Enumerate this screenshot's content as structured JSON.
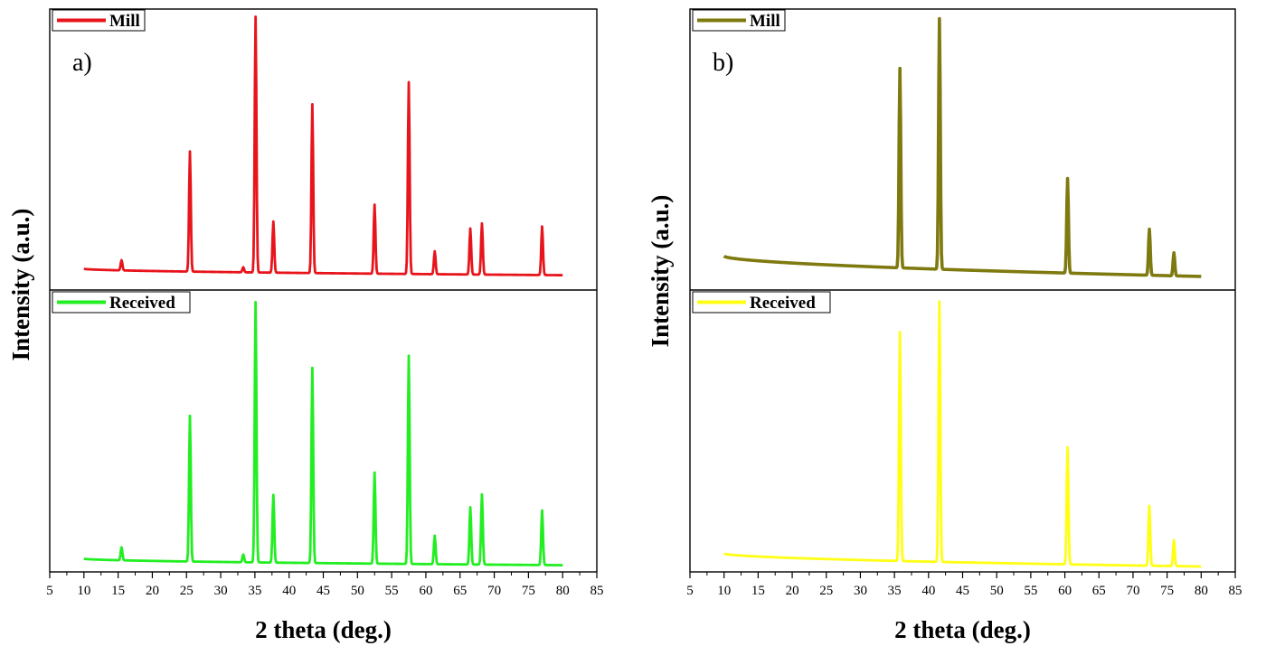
{
  "chart_data": [
    {
      "type": "line",
      "panel_label": "a)",
      "xlabel": "2 theta (deg.)",
      "ylabel": "Intensity (a.u.)",
      "xlim": [
        5,
        85
      ],
      "x_ticks": [
        5,
        10,
        15,
        20,
        25,
        30,
        35,
        40,
        45,
        50,
        55,
        60,
        65,
        70,
        75,
        80,
        85
      ],
      "y_ticks_shown": false,
      "grid": false,
      "layout": "two stacked panels sharing the x axis",
      "series": [
        {
          "name": "Mill",
          "color": "#e8141b",
          "panel": "top",
          "baseline_start": 0.03,
          "baseline_end": 0.005,
          "peaks": [
            {
              "x": 15.5,
              "height": 0.04
            },
            {
              "x": 25.5,
              "height": 0.47
            },
            {
              "x": 33.3,
              "height": 0.02
            },
            {
              "x": 35.1,
              "height": 1.0
            },
            {
              "x": 37.7,
              "height": 0.2
            },
            {
              "x": 43.4,
              "height": 0.66
            },
            {
              "x": 52.5,
              "height": 0.27
            },
            {
              "x": 57.5,
              "height": 0.75
            },
            {
              "x": 61.3,
              "height": 0.09
            },
            {
              "x": 66.5,
              "height": 0.18
            },
            {
              "x": 68.2,
              "height": 0.2
            },
            {
              "x": 77.0,
              "height": 0.19
            }
          ]
        },
        {
          "name": "Received",
          "color": "#22ee22",
          "panel": "bottom",
          "baseline_start": 0.03,
          "baseline_end": 0.005,
          "peaks": [
            {
              "x": 15.5,
              "height": 0.05
            },
            {
              "x": 25.5,
              "height": 0.56
            },
            {
              "x": 33.3,
              "height": 0.03
            },
            {
              "x": 35.1,
              "height": 1.0
            },
            {
              "x": 37.7,
              "height": 0.26
            },
            {
              "x": 43.4,
              "height": 0.75
            },
            {
              "x": 52.5,
              "height": 0.35
            },
            {
              "x": 57.5,
              "height": 0.8
            },
            {
              "x": 61.3,
              "height": 0.11
            },
            {
              "x": 66.5,
              "height": 0.22
            },
            {
              "x": 68.2,
              "height": 0.27
            },
            {
              "x": 77.0,
              "height": 0.21
            }
          ]
        }
      ]
    },
    {
      "type": "line",
      "panel_label": "b)",
      "xlabel": "2 theta (deg.)",
      "ylabel": "Intensity (a.u.)",
      "xlim": [
        5,
        85
      ],
      "x_ticks": [
        5,
        10,
        15,
        20,
        25,
        30,
        35,
        40,
        45,
        50,
        55,
        60,
        65,
        70,
        75,
        80,
        85
      ],
      "y_ticks_shown": false,
      "grid": false,
      "layout": "two stacked panels sharing the x axis",
      "series": [
        {
          "name": "Mill",
          "color": "#7f7a10",
          "panel": "top",
          "baseline_start": 0.08,
          "baseline_end": 0.0,
          "peaks": [
            {
              "x": 35.8,
              "height": 0.78
            },
            {
              "x": 41.6,
              "height": 0.98
            },
            {
              "x": 60.4,
              "height": 0.37
            },
            {
              "x": 72.4,
              "height": 0.18
            },
            {
              "x": 76.0,
              "height": 0.09
            }
          ]
        },
        {
          "name": "Received",
          "color": "#ffff14",
          "panel": "bottom",
          "baseline_start": 0.05,
          "baseline_end": 0.0,
          "peaks": [
            {
              "x": 35.8,
              "height": 0.88
            },
            {
              "x": 41.6,
              "height": 1.0
            },
            {
              "x": 60.4,
              "height": 0.45
            },
            {
              "x": 72.4,
              "height": 0.23
            },
            {
              "x": 76.0,
              "height": 0.1
            }
          ]
        }
      ]
    }
  ]
}
